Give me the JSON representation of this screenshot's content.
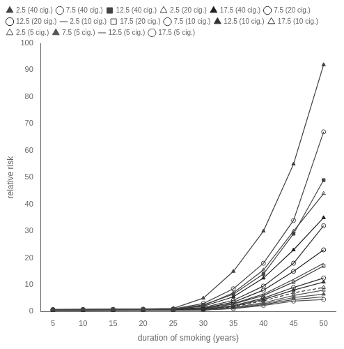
{
  "chart_data": {
    "type": "line",
    "xlabel": "duration of smoking (years)",
    "ylabel": "relative risk",
    "x": [
      5,
      10,
      15,
      20,
      25,
      30,
      35,
      40,
      45,
      50
    ],
    "xlim": [
      3,
      52
    ],
    "ylim": [
      0,
      100
    ],
    "xticks": [
      5,
      10,
      15,
      20,
      25,
      30,
      35,
      40,
      45,
      50
    ],
    "yticks": [
      0,
      10,
      20,
      30,
      40,
      50,
      60,
      70,
      80,
      90,
      100
    ],
    "grid": false,
    "legend": "upper left",
    "series": [
      {
        "name": "2.5 (40 cig.)",
        "marker": "triangle",
        "line_style": "solid",
        "color": "#444444",
        "values": [
          0.8,
          0.85,
          0.9,
          1.0,
          1.2,
          5.0,
          15.0,
          30.0,
          55.0,
          92.0
        ]
      },
      {
        "name": "7.5 (40 cig.)",
        "marker": "circle_open",
        "line_style": "solid",
        "color": "#444444",
        "values": [
          0.8,
          0.82,
          0.85,
          0.9,
          1.0,
          3.0,
          8.5,
          18.0,
          34.0,
          67.0
        ]
      },
      {
        "name": "12.5 (40 cig.)",
        "marker": "square",
        "line_style": "solid",
        "color": "#444444",
        "values": [
          0.75,
          0.8,
          0.82,
          0.88,
          0.95,
          2.5,
          6.5,
          14.0,
          29.0,
          49.0
        ]
      },
      {
        "name": "2.5 (20 cig.)",
        "marker": "triangle_open",
        "line_style": "solid",
        "color": "#444444",
        "values": [
          0.72,
          0.75,
          0.78,
          0.83,
          0.9,
          2.2,
          7.0,
          15.5,
          30.0,
          44.0
        ]
      },
      {
        "name": "17.5 (40 cig.)",
        "marker": "triangle",
        "line_style": "solid",
        "color": "#222222",
        "values": [
          0.7,
          0.72,
          0.75,
          0.8,
          0.88,
          2.0,
          5.5,
          12.5,
          23.0,
          35.0
        ]
      },
      {
        "name": "7.5 (20 cig.)",
        "marker": "circle_open",
        "line_style": "solid",
        "color": "#333333",
        "values": [
          0.65,
          0.68,
          0.72,
          0.77,
          0.83,
          1.5,
          4.2,
          9.5,
          18.0,
          32.0
        ]
      },
      {
        "name": "12.5 (20 cig.)",
        "marker": "circle_open",
        "line_style": "solid",
        "color": "#222222",
        "values": [
          0.62,
          0.65,
          0.68,
          0.73,
          0.8,
          1.2,
          3.5,
          8.0,
          15.0,
          23.0
        ]
      },
      {
        "name": "2.5 (10 cig.)",
        "marker": "none",
        "line_style": "solid",
        "color": "#444444",
        "values": [
          0.6,
          0.62,
          0.65,
          0.7,
          0.77,
          1.0,
          3.0,
          6.5,
          12.0,
          18.0
        ]
      },
      {
        "name": "17.5 (20 cig.)",
        "marker": "square_open",
        "line_style": "solid",
        "color": "#444444",
        "values": [
          0.58,
          0.61,
          0.64,
          0.69,
          0.75,
          0.95,
          2.8,
          6.0,
          11.0,
          17.0
        ]
      },
      {
        "name": "7.5 (10 cig.)",
        "marker": "circle_open",
        "line_style": "solid",
        "color": "#333333",
        "values": [
          0.55,
          0.58,
          0.61,
          0.65,
          0.71,
          0.82,
          2.2,
          5.0,
          9.0,
          12.5
        ]
      },
      {
        "name": "12.5 (10 cig.)",
        "marker": "triangle",
        "line_style": "solid",
        "color": "#333333",
        "values": [
          0.53,
          0.55,
          0.58,
          0.62,
          0.68,
          0.78,
          2.0,
          4.5,
          8.0,
          11.0
        ]
      },
      {
        "name": "17.5 (10 cig.)",
        "marker": "triangle_open",
        "line_style": "dashed",
        "color": "#333333",
        "values": [
          0.51,
          0.53,
          0.56,
          0.6,
          0.65,
          0.72,
          1.8,
          4.0,
          7.0,
          9.0
        ]
      },
      {
        "name": "2.5 (5 cig.)",
        "marker": "triangle_open",
        "line_style": "solid",
        "color": "#555555",
        "values": [
          0.49,
          0.51,
          0.54,
          0.57,
          0.62,
          0.67,
          1.5,
          3.3,
          6.0,
          8.0
        ]
      },
      {
        "name": "7.5 (5 cig.)",
        "marker": "triangle",
        "line_style": "solid",
        "color": "#555555",
        "values": [
          0.47,
          0.49,
          0.52,
          0.55,
          0.59,
          0.63,
          1.3,
          2.9,
          5.2,
          6.5
        ]
      },
      {
        "name": "12.5 (5 cig.)",
        "marker": "none",
        "line_style": "solid",
        "color": "#444444",
        "values": [
          0.45,
          0.47,
          0.5,
          0.53,
          0.57,
          0.6,
          1.2,
          2.6,
          4.5,
          5.5
        ]
      },
      {
        "name": "17.5 (5 cig.)",
        "marker": "circle_open",
        "line_style": "solid",
        "color": "#555555",
        "values": [
          0.43,
          0.45,
          0.48,
          0.51,
          0.54,
          0.57,
          1.1,
          2.3,
          3.9,
          4.5
        ]
      }
    ]
  }
}
